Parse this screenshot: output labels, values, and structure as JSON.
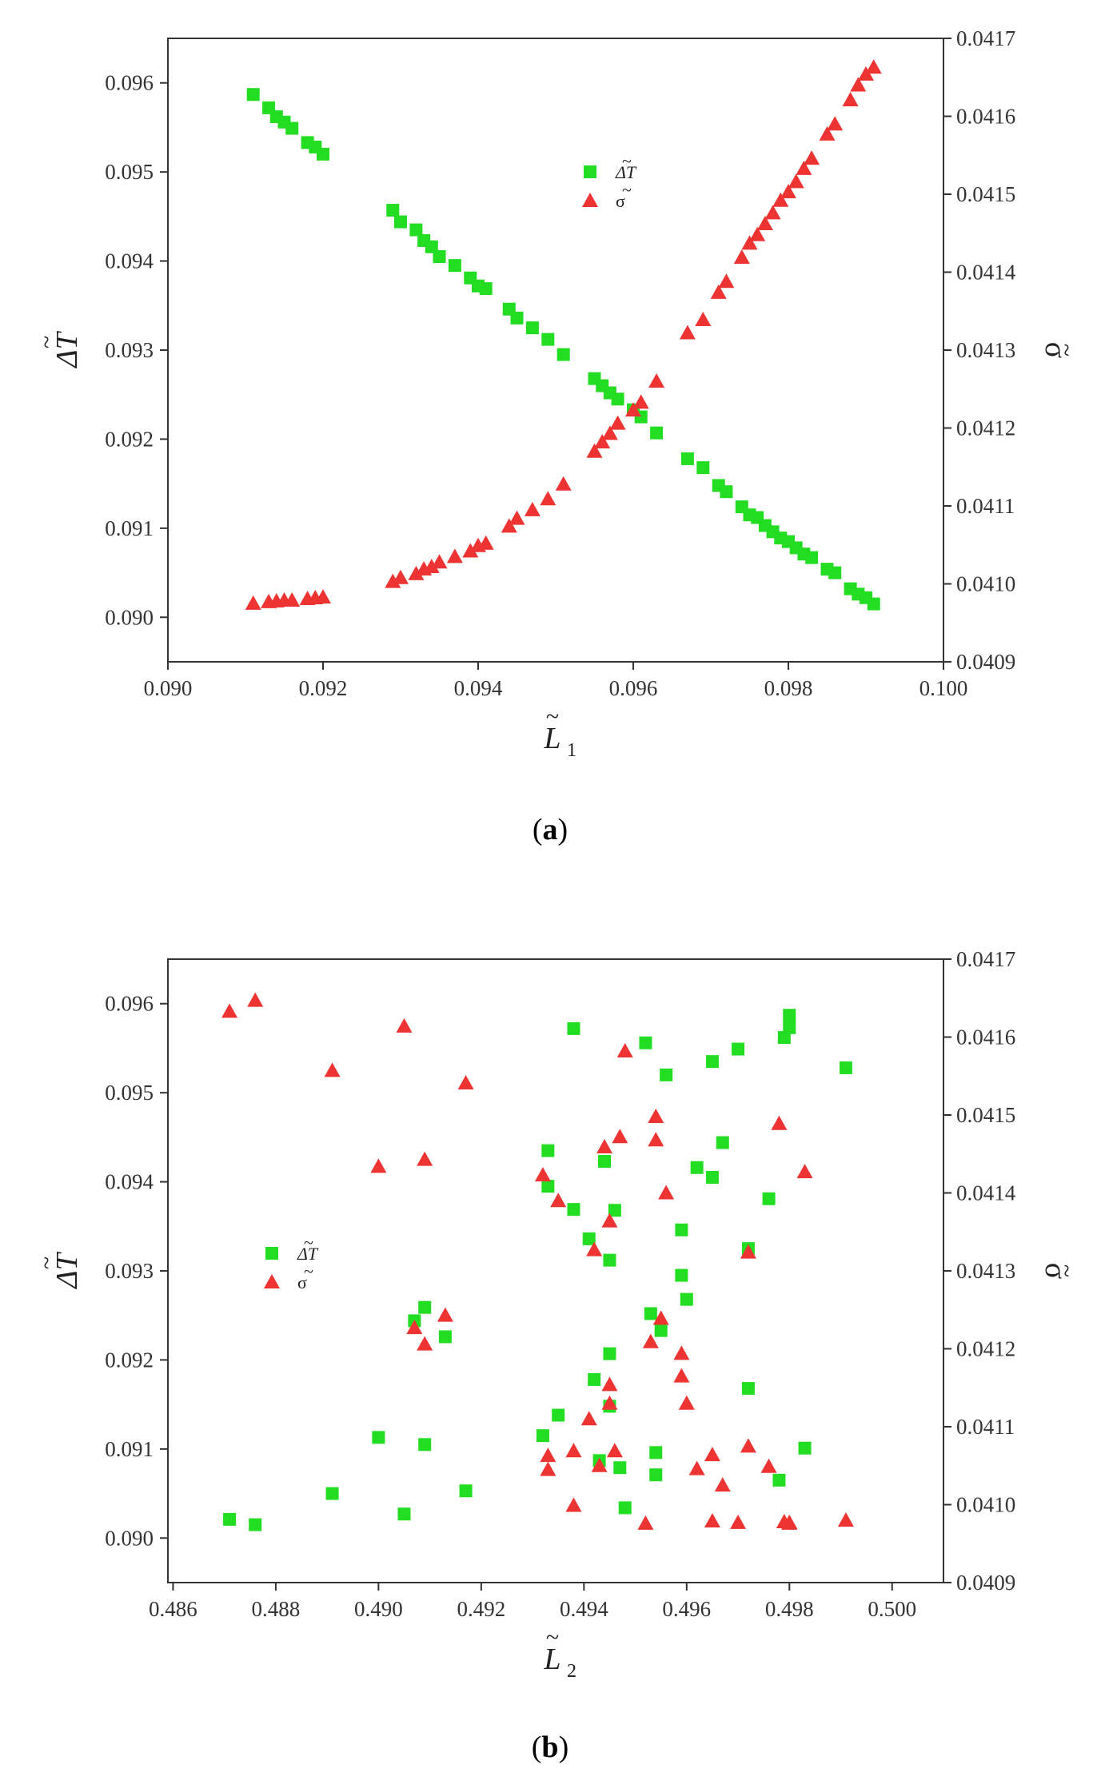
{
  "chart_data": [
    {
      "type": "scatter",
      "panel_label": "a",
      "xlabel": "L",
      "xlabel_subscript": "1",
      "xlabel_tilde": "~",
      "ylabel": "ΔT",
      "ylabel_tilde": "~",
      "y2label": "σ",
      "y2label_tilde": "~",
      "xlim": [
        0.09,
        0.1
      ],
      "ylim": [
        0.0895,
        0.0965
      ],
      "y2lim": [
        0.0409,
        0.0417
      ],
      "xticks": [
        "0.090",
        "0.092",
        "0.094",
        "0.096",
        "0.098",
        "0.100"
      ],
      "yticks": [
        "0.090",
        "0.091",
        "0.092",
        "0.093",
        "0.094",
        "0.095",
        "0.096"
      ],
      "y2ticks": [
        "0.0409",
        "0.0410",
        "0.0411",
        "0.0412",
        "0.0413",
        "0.0414",
        "0.0415",
        "0.0416",
        "0.0417"
      ],
      "legend": [
        {
          "label": "ΔT",
          "tilde": "~",
          "color": "#22dd22",
          "marker": "square"
        },
        {
          "label": "σ",
          "tilde": "~",
          "color": "#ee3333",
          "marker": "triangle"
        }
      ],
      "series": [
        {
          "name": "ΔT",
          "axis": "left",
          "color": "#22dd22",
          "marker": "square",
          "x": [
            0.0911,
            0.0913,
            0.0914,
            0.0915,
            0.0916,
            0.0918,
            0.0919,
            0.092,
            0.0929,
            0.093,
            0.0932,
            0.0933,
            0.0934,
            0.0935,
            0.0937,
            0.0939,
            0.094,
            0.0941,
            0.0944,
            0.0945,
            0.0947,
            0.0949,
            0.0951,
            0.0955,
            0.0956,
            0.0957,
            0.0958,
            0.096,
            0.0961,
            0.0963,
            0.0967,
            0.0969,
            0.0971,
            0.0972,
            0.0974,
            0.0975,
            0.0976,
            0.0977,
            0.0978,
            0.0979,
            0.098,
            0.0981,
            0.0982,
            0.0983,
            0.0985,
            0.0986,
            0.0988,
            0.0989,
            0.099,
            0.0991
          ],
          "y": [
            0.09587,
            0.09572,
            0.09562,
            0.09556,
            0.09549,
            0.09533,
            0.09528,
            0.0952,
            0.09457,
            0.09444,
            0.09435,
            0.09423,
            0.09416,
            0.09405,
            0.09395,
            0.09381,
            0.09372,
            0.09369,
            0.09346,
            0.09336,
            0.09325,
            0.09312,
            0.09295,
            0.09268,
            0.0926,
            0.09252,
            0.09245,
            0.09233,
            0.09225,
            0.09207,
            0.09178,
            0.09168,
            0.09148,
            0.09141,
            0.09124,
            0.09115,
            0.09112,
            0.09103,
            0.09096,
            0.09089,
            0.09085,
            0.09078,
            0.09071,
            0.09067,
            0.09054,
            0.0905,
            0.09032,
            0.09026,
            0.09022,
            0.09015
          ]
        },
        {
          "name": "σ",
          "axis": "right",
          "color": "#ee3333",
          "marker": "triangle",
          "x": [
            0.0911,
            0.0913,
            0.0914,
            0.0915,
            0.0916,
            0.0918,
            0.0919,
            0.092,
            0.0929,
            0.093,
            0.0932,
            0.0933,
            0.0934,
            0.0935,
            0.0937,
            0.0939,
            0.094,
            0.0941,
            0.0944,
            0.0945,
            0.0947,
            0.0949,
            0.0951,
            0.0955,
            0.0956,
            0.0957,
            0.0958,
            0.096,
            0.0961,
            0.0963,
            0.0967,
            0.0969,
            0.0971,
            0.0972,
            0.0974,
            0.0975,
            0.0976,
            0.0977,
            0.0978,
            0.0979,
            0.098,
            0.0981,
            0.0982,
            0.0983,
            0.0985,
            0.0986,
            0.0988,
            0.0989,
            0.099,
            0.0991
          ],
          "y": [
            0.040975,
            0.040977,
            0.040978,
            0.040979,
            0.040979,
            0.040981,
            0.040982,
            0.040983,
            0.041003,
            0.041008,
            0.041013,
            0.041019,
            0.041022,
            0.041028,
            0.041035,
            0.041042,
            0.041049,
            0.041052,
            0.041074,
            0.041084,
            0.041095,
            0.041109,
            0.041128,
            0.04117,
            0.041182,
            0.041193,
            0.041206,
            0.041223,
            0.041233,
            0.04126,
            0.041322,
            0.041339,
            0.041374,
            0.041388,
            0.041419,
            0.041437,
            0.041448,
            0.041462,
            0.041476,
            0.041492,
            0.041503,
            0.041516,
            0.041533,
            0.041546,
            0.041577,
            0.04159,
            0.041621,
            0.04164,
            0.041654,
            0.041663
          ]
        }
      ]
    },
    {
      "type": "scatter",
      "panel_label": "b",
      "xlabel": "L",
      "xlabel_subscript": "2",
      "xlabel_tilde": "~",
      "ylabel": "ΔT",
      "ylabel_tilde": "~",
      "y2label": "σ",
      "y2label_tilde": "~",
      "xlim": [
        0.4859,
        0.501
      ],
      "ylim": [
        0.0895,
        0.0965
      ],
      "y2lim": [
        0.0409,
        0.0417
      ],
      "xticks": [
        "0.486",
        "0.488",
        "0.490",
        "0.492",
        "0.494",
        "0.496",
        "0.498",
        "0.500"
      ],
      "yticks": [
        "0.090",
        "0.091",
        "0.092",
        "0.093",
        "0.094",
        "0.095",
        "0.096"
      ],
      "y2ticks": [
        "0.0409",
        "0.0410",
        "0.0411",
        "0.0412",
        "0.0413",
        "0.0414",
        "0.0415",
        "0.0416",
        "0.0417"
      ],
      "legend": [
        {
          "label": "ΔT",
          "tilde": "~",
          "color": "#22dd22",
          "marker": "square"
        },
        {
          "label": "σ",
          "tilde": "~",
          "color": "#ee3333",
          "marker": "triangle"
        }
      ],
      "series": [
        {
          "name": "ΔT",
          "axis": "left",
          "color": "#22dd22",
          "marker": "square",
          "x": [
            0.4871,
            0.4876,
            0.4891,
            0.49,
            0.4905,
            0.4907,
            0.4909,
            0.4909,
            0.4913,
            0.4917,
            0.4932,
            0.4933,
            0.4933,
            0.4935,
            0.4938,
            0.4938,
            0.4941,
            0.4942,
            0.4943,
            0.4944,
            0.4945,
            0.4945,
            0.4945,
            0.4946,
            0.4947,
            0.4948,
            0.4952,
            0.4953,
            0.4954,
            0.4954,
            0.4955,
            0.4956,
            0.4959,
            0.4959,
            0.496,
            0.4962,
            0.4965,
            0.4965,
            0.4967,
            0.497,
            0.4972,
            0.4972,
            0.4976,
            0.4978,
            0.4979,
            0.498,
            0.498,
            0.4983,
            0.4991
          ],
          "y": [
            0.09021,
            0.09015,
            0.0905,
            0.09113,
            0.09027,
            0.09244,
            0.09259,
            0.09105,
            0.09226,
            0.09053,
            0.09115,
            0.09395,
            0.09435,
            0.09138,
            0.09572,
            0.09369,
            0.09336,
            0.09178,
            0.09087,
            0.09423,
            0.09148,
            0.09312,
            0.09207,
            0.09368,
            0.09079,
            0.09034,
            0.09556,
            0.09252,
            0.09096,
            0.09071,
            0.09233,
            0.0952,
            0.09346,
            0.09295,
            0.09268,
            0.09416,
            0.09535,
            0.09405,
            0.09444,
            0.09549,
            0.09325,
            0.09168,
            0.09381,
            0.09065,
            0.09562,
            0.09573,
            0.09587,
            0.09101,
            0.09528
          ]
        },
        {
          "name": "σ",
          "axis": "right",
          "color": "#ee3333",
          "marker": "triangle",
          "x": [
            0.4871,
            0.4876,
            0.4891,
            0.49,
            0.4905,
            0.4907,
            0.4909,
            0.4909,
            0.4913,
            0.4917,
            0.4932,
            0.4933,
            0.4933,
            0.4935,
            0.4938,
            0.4938,
            0.4941,
            0.4942,
            0.4943,
            0.4944,
            0.4945,
            0.4945,
            0.4945,
            0.4946,
            0.4947,
            0.4948,
            0.4952,
            0.4953,
            0.4954,
            0.4954,
            0.4955,
            0.4956,
            0.4959,
            0.4959,
            0.496,
            0.4962,
            0.4965,
            0.4965,
            0.4967,
            0.497,
            0.4972,
            0.4972,
            0.4976,
            0.4978,
            0.4979,
            0.498,
            0.498,
            0.4983,
            0.4991
          ],
          "y": [
            0.041633,
            0.041647,
            0.041557,
            0.041434,
            0.041614,
            0.041227,
            0.041443,
            0.041206,
            0.041243,
            0.041541,
            0.041423,
            0.041045,
            0.041063,
            0.04139,
            0.040999,
            0.041069,
            0.04111,
            0.041327,
            0.04105,
            0.041459,
            0.04113,
            0.041154,
            0.041364,
            0.041069,
            0.041472,
            0.041582,
            0.040976,
            0.041209,
            0.041468,
            0.041498,
            0.041239,
            0.0414,
            0.041165,
            0.041194,
            0.04113,
            0.041046,
            0.040979,
            0.041064,
            0.041025,
            0.040977,
            0.041075,
            0.041324,
            0.041049,
            0.041489,
            0.040978,
            0.040977,
            0.040976,
            0.041427,
            0.04098
          ]
        }
      ]
    }
  ]
}
